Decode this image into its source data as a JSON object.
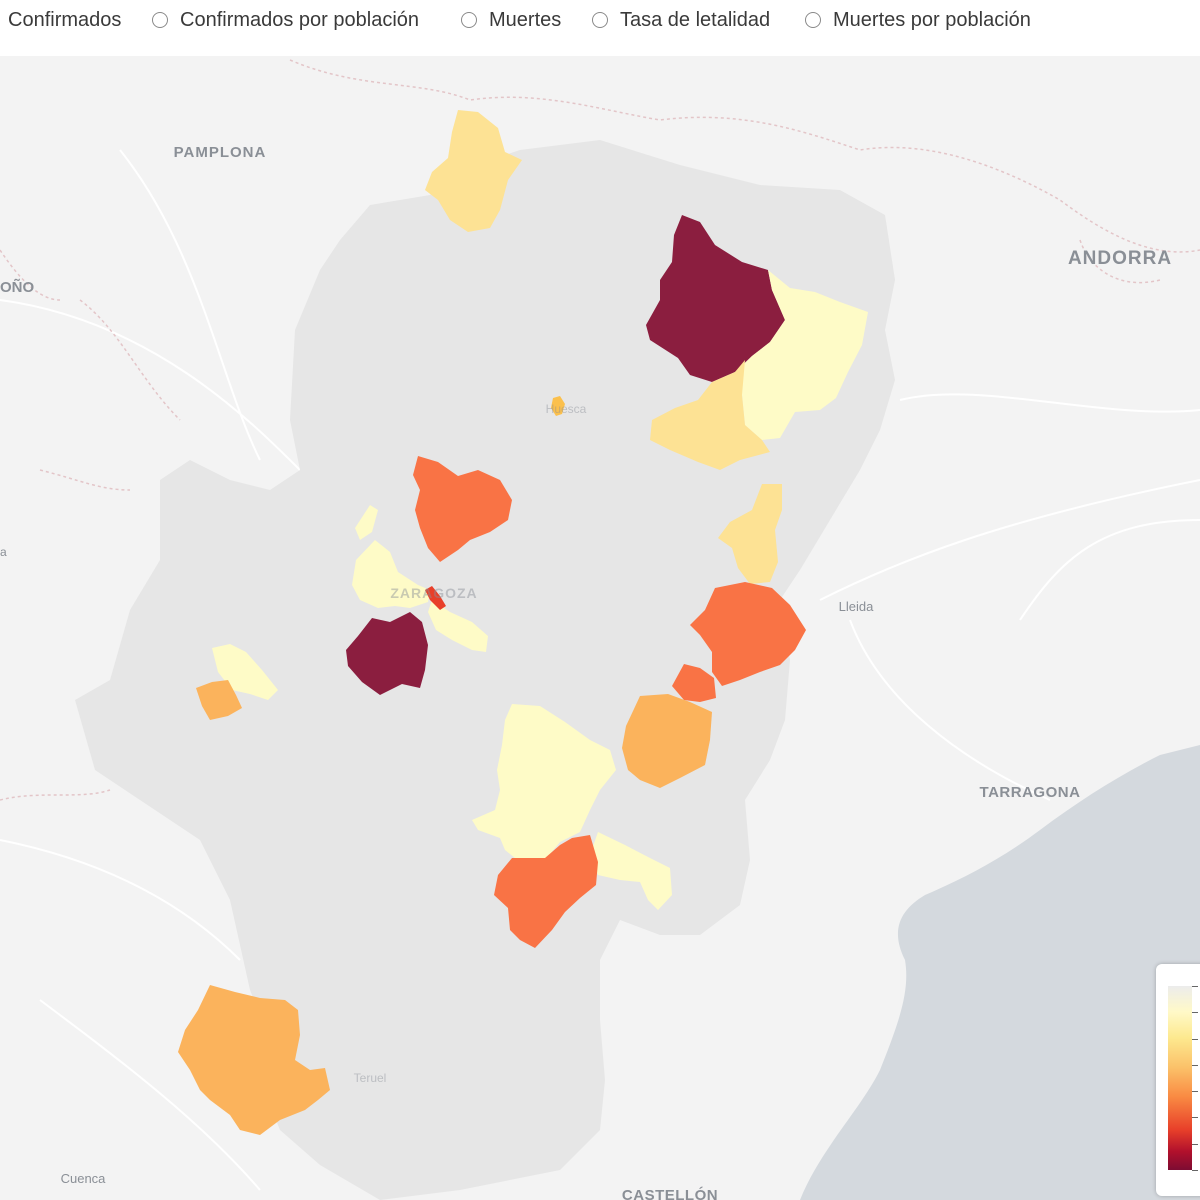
{
  "metric_options": [
    {
      "label": "Confirmados",
      "show_radio": false
    },
    {
      "label": "Confirmados por población",
      "show_radio": true
    },
    {
      "label": "Muertes",
      "show_radio": true
    },
    {
      "label": "Tasa de letalidad",
      "show_radio": true
    },
    {
      "label": "Muertes por población",
      "show_radio": true
    }
  ],
  "places": {
    "pamplona": "PAMPLONA",
    "andorra": "ANDORRA",
    "logrono_fragment": "OÑO",
    "lleida": "Lleida",
    "tarragona": "TARRAGONA",
    "cuenca": "Cuenca",
    "castellon": "CASTELLÓN",
    "huesca": "Huesca",
    "zaragoza": "ZARAGOZA",
    "teruel": "Teruel",
    "left_edge": "a"
  },
  "colors": {
    "no_data": "#e6e6e6",
    "darkest": "#8b1e3f",
    "orange_red": "#f97345",
    "light_orange": "#fbb35c",
    "light_yellow": "#fde294",
    "pale_yellow": "#fefbc7",
    "sea": "#d4d9de",
    "land": "#f3f3f3"
  },
  "legend_ticks": 8
}
